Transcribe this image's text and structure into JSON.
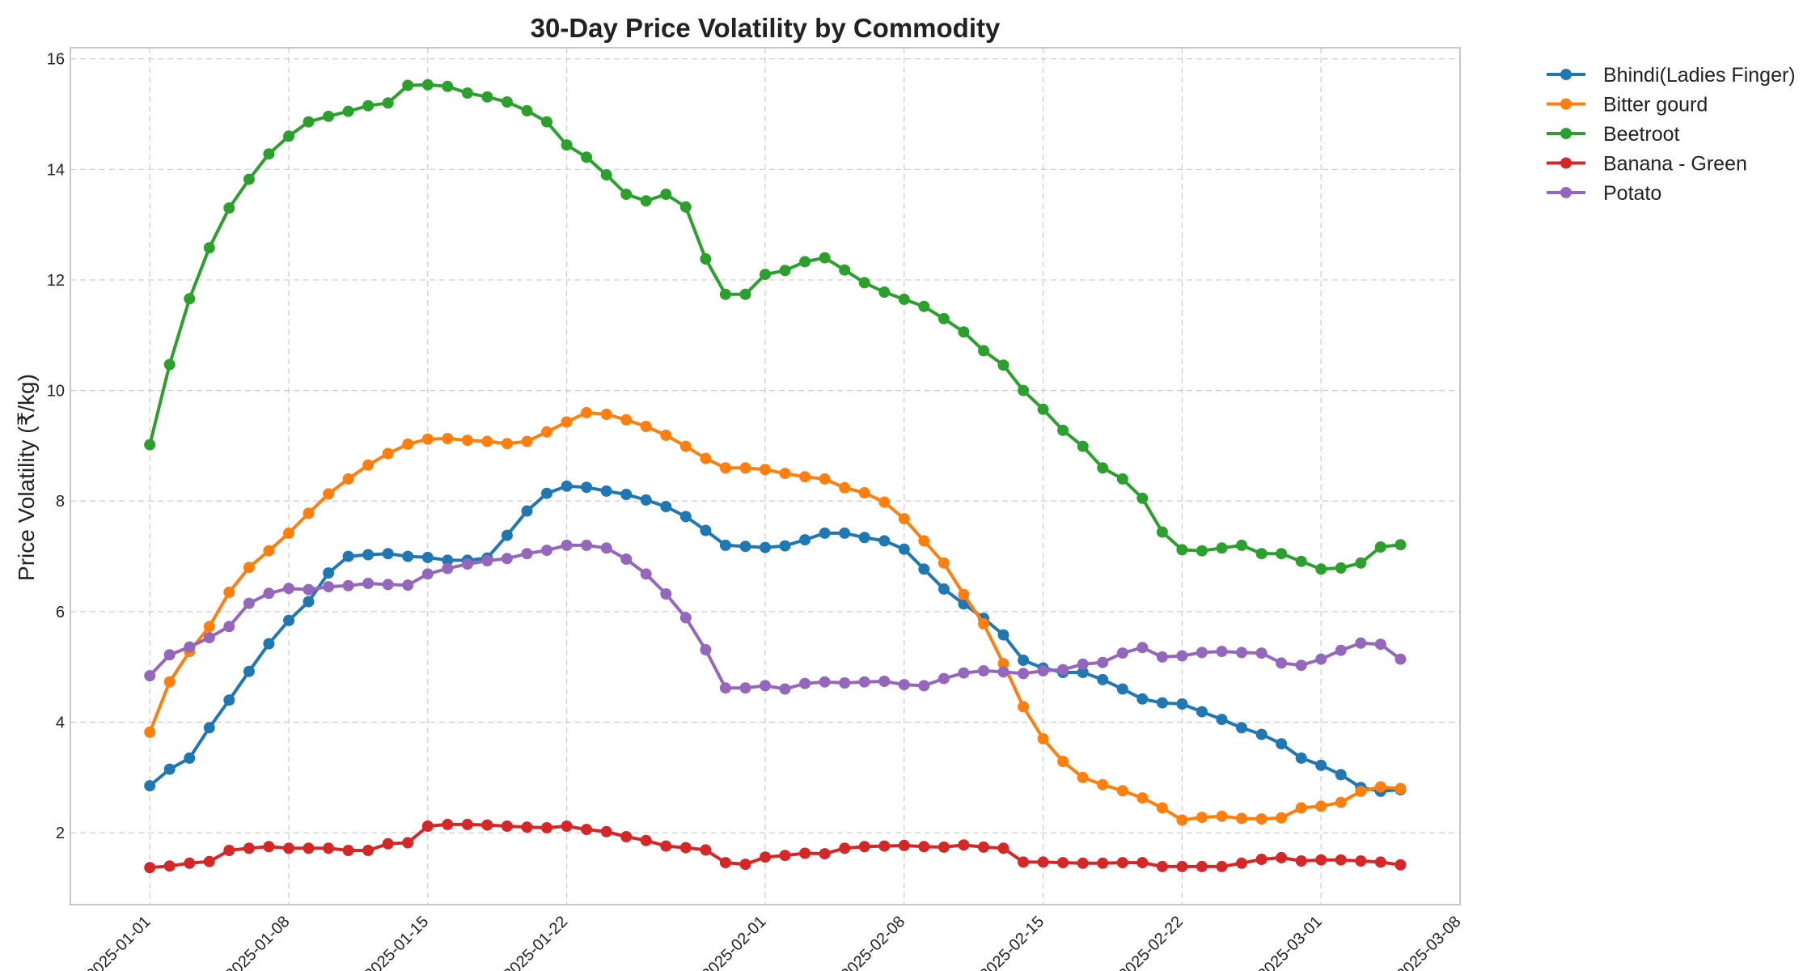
{
  "chart_data": {
    "type": "line",
    "title": "30-Day Price Volatility by Commodity",
    "xlabel": "",
    "ylabel": "Price Volatility (₹/kg)",
    "x_start": "2025-01-01",
    "xlim": [
      "2024-12-28",
      "2025-03-08"
    ],
    "ylim": [
      0.7,
      16.2
    ],
    "x_ticks": [
      "2025-01-01",
      "2025-01-08",
      "2025-01-15",
      "2025-01-22",
      "2025-02-01",
      "2025-02-08",
      "2025-02-15",
      "2025-02-22",
      "2025-03-01",
      "2025-03-08"
    ],
    "y_ticks": [
      2,
      4,
      6,
      8,
      10,
      12,
      14,
      16
    ],
    "grid": true,
    "legend_position": "outside-top-right",
    "x": [
      "2025-01-01",
      "2025-01-02",
      "2025-01-03",
      "2025-01-04",
      "2025-01-05",
      "2025-01-06",
      "2025-01-07",
      "2025-01-08",
      "2025-01-09",
      "2025-01-10",
      "2025-01-11",
      "2025-01-12",
      "2025-01-13",
      "2025-01-14",
      "2025-01-15",
      "2025-01-16",
      "2025-01-17",
      "2025-01-18",
      "2025-01-19",
      "2025-01-20",
      "2025-01-21",
      "2025-01-22",
      "2025-01-23",
      "2025-01-24",
      "2025-01-25",
      "2025-01-26",
      "2025-01-27",
      "2025-01-28",
      "2025-01-29",
      "2025-01-30",
      "2025-01-31",
      "2025-02-01",
      "2025-02-02",
      "2025-02-03",
      "2025-02-04",
      "2025-02-05",
      "2025-02-06",
      "2025-02-07",
      "2025-02-08",
      "2025-02-09",
      "2025-02-10",
      "2025-02-11",
      "2025-02-12",
      "2025-02-13",
      "2025-02-14",
      "2025-02-15",
      "2025-02-16",
      "2025-02-17",
      "2025-02-18",
      "2025-02-19",
      "2025-02-20",
      "2025-02-21",
      "2025-02-22",
      "2025-02-23",
      "2025-02-24",
      "2025-02-25",
      "2025-02-26",
      "2025-02-27",
      "2025-02-28",
      "2025-03-01",
      "2025-03-02",
      "2025-03-03",
      "2025-03-04",
      "2025-03-05"
    ],
    "series": [
      {
        "name": "Bhindi(Ladies Finger)",
        "color": "#1f77b4",
        "values": [
          2.85,
          3.15,
          3.35,
          3.9,
          4.4,
          4.92,
          5.42,
          5.84,
          6.18,
          6.7,
          7.0,
          7.03,
          7.05,
          7.0,
          6.98,
          6.93,
          6.93,
          6.97,
          7.38,
          7.82,
          8.14,
          8.27,
          8.25,
          8.18,
          8.12,
          8.02,
          7.9,
          7.72,
          7.47,
          7.2,
          7.18,
          7.16,
          7.19,
          7.3,
          7.42,
          7.42,
          7.34,
          7.28,
          7.13,
          6.77,
          6.41,
          6.14,
          5.88,
          5.58,
          5.12,
          4.98,
          4.9,
          4.9,
          4.77,
          4.6,
          4.42,
          4.35,
          4.33,
          4.19,
          4.05,
          3.9,
          3.78,
          3.61,
          3.35,
          3.22,
          3.05,
          2.82,
          2.75,
          2.78
        ]
      },
      {
        "name": "Bitter gourd",
        "color": "#ff7f0e",
        "values": [
          3.82,
          4.73,
          5.28,
          5.73,
          6.35,
          6.8,
          7.1,
          7.42,
          7.78,
          8.13,
          8.4,
          8.65,
          8.86,
          9.03,
          9.12,
          9.13,
          9.1,
          9.08,
          9.04,
          9.08,
          9.25,
          9.43,
          9.6,
          9.57,
          9.47,
          9.35,
          9.19,
          8.99,
          8.77,
          8.6,
          8.6,
          8.57,
          8.5,
          8.44,
          8.4,
          8.24,
          8.15,
          7.98,
          7.68,
          7.28,
          6.88,
          6.31,
          5.78,
          5.06,
          4.28,
          3.7,
          3.29,
          3.0,
          2.87,
          2.76,
          2.63,
          2.45,
          2.23,
          2.28,
          2.3,
          2.26,
          2.25,
          2.27,
          2.45,
          2.48,
          2.55,
          2.75,
          2.83,
          2.8
        ]
      },
      {
        "name": "Beetroot",
        "color": "#2ca02c",
        "values": [
          9.02,
          10.47,
          11.66,
          12.58,
          13.3,
          13.82,
          14.28,
          14.6,
          14.86,
          14.96,
          15.05,
          15.15,
          15.2,
          15.52,
          15.53,
          15.5,
          15.38,
          15.31,
          15.22,
          15.06,
          14.86,
          14.44,
          14.22,
          13.9,
          13.55,
          13.43,
          13.55,
          13.32,
          12.38,
          11.74,
          11.74,
          12.1,
          12.17,
          12.33,
          12.4,
          12.18,
          11.95,
          11.78,
          11.65,
          11.52,
          11.3,
          11.06,
          10.72,
          10.46,
          10.0,
          9.66,
          9.28,
          8.99,
          8.6,
          8.4,
          8.05,
          7.44,
          7.12,
          7.1,
          7.15,
          7.2,
          7.05,
          7.05,
          6.91,
          6.77,
          6.79,
          6.88,
          7.17,
          7.21
        ]
      },
      {
        "name": "Banana - Green",
        "color": "#d62728",
        "values": [
          1.37,
          1.4,
          1.45,
          1.48,
          1.68,
          1.72,
          1.75,
          1.72,
          1.72,
          1.72,
          1.68,
          1.68,
          1.8,
          1.82,
          2.12,
          2.15,
          2.15,
          2.14,
          2.12,
          2.1,
          2.09,
          2.12,
          2.06,
          2.02,
          1.93,
          1.86,
          1.76,
          1.73,
          1.69,
          1.46,
          1.43,
          1.56,
          1.59,
          1.63,
          1.62,
          1.72,
          1.75,
          1.76,
          1.77,
          1.75,
          1.74,
          1.78,
          1.74,
          1.72,
          1.47,
          1.47,
          1.46,
          1.45,
          1.45,
          1.46,
          1.46,
          1.39,
          1.39,
          1.39,
          1.39,
          1.45,
          1.52,
          1.55,
          1.49,
          1.51,
          1.51,
          1.49,
          1.47,
          1.42
        ]
      },
      {
        "name": "Potato",
        "color": "#9467bd",
        "values": [
          4.84,
          5.22,
          5.36,
          5.53,
          5.73,
          6.15,
          6.33,
          6.42,
          6.4,
          6.45,
          6.47,
          6.51,
          6.49,
          6.48,
          6.68,
          6.78,
          6.86,
          6.92,
          6.96,
          7.05,
          7.11,
          7.2,
          7.2,
          7.15,
          6.95,
          6.68,
          6.32,
          5.89,
          5.31,
          4.62,
          4.62,
          4.66,
          4.6,
          4.7,
          4.73,
          4.71,
          4.73,
          4.74,
          4.68,
          4.66,
          4.79,
          4.89,
          4.93,
          4.91,
          4.88,
          4.93,
          4.95,
          5.05,
          5.08,
          5.25,
          5.35,
          5.18,
          5.2,
          5.26,
          5.28,
          5.26,
          5.25,
          5.07,
          5.03,
          5.14,
          5.3,
          5.43,
          5.41,
          5.14
        ]
      }
    ]
  }
}
